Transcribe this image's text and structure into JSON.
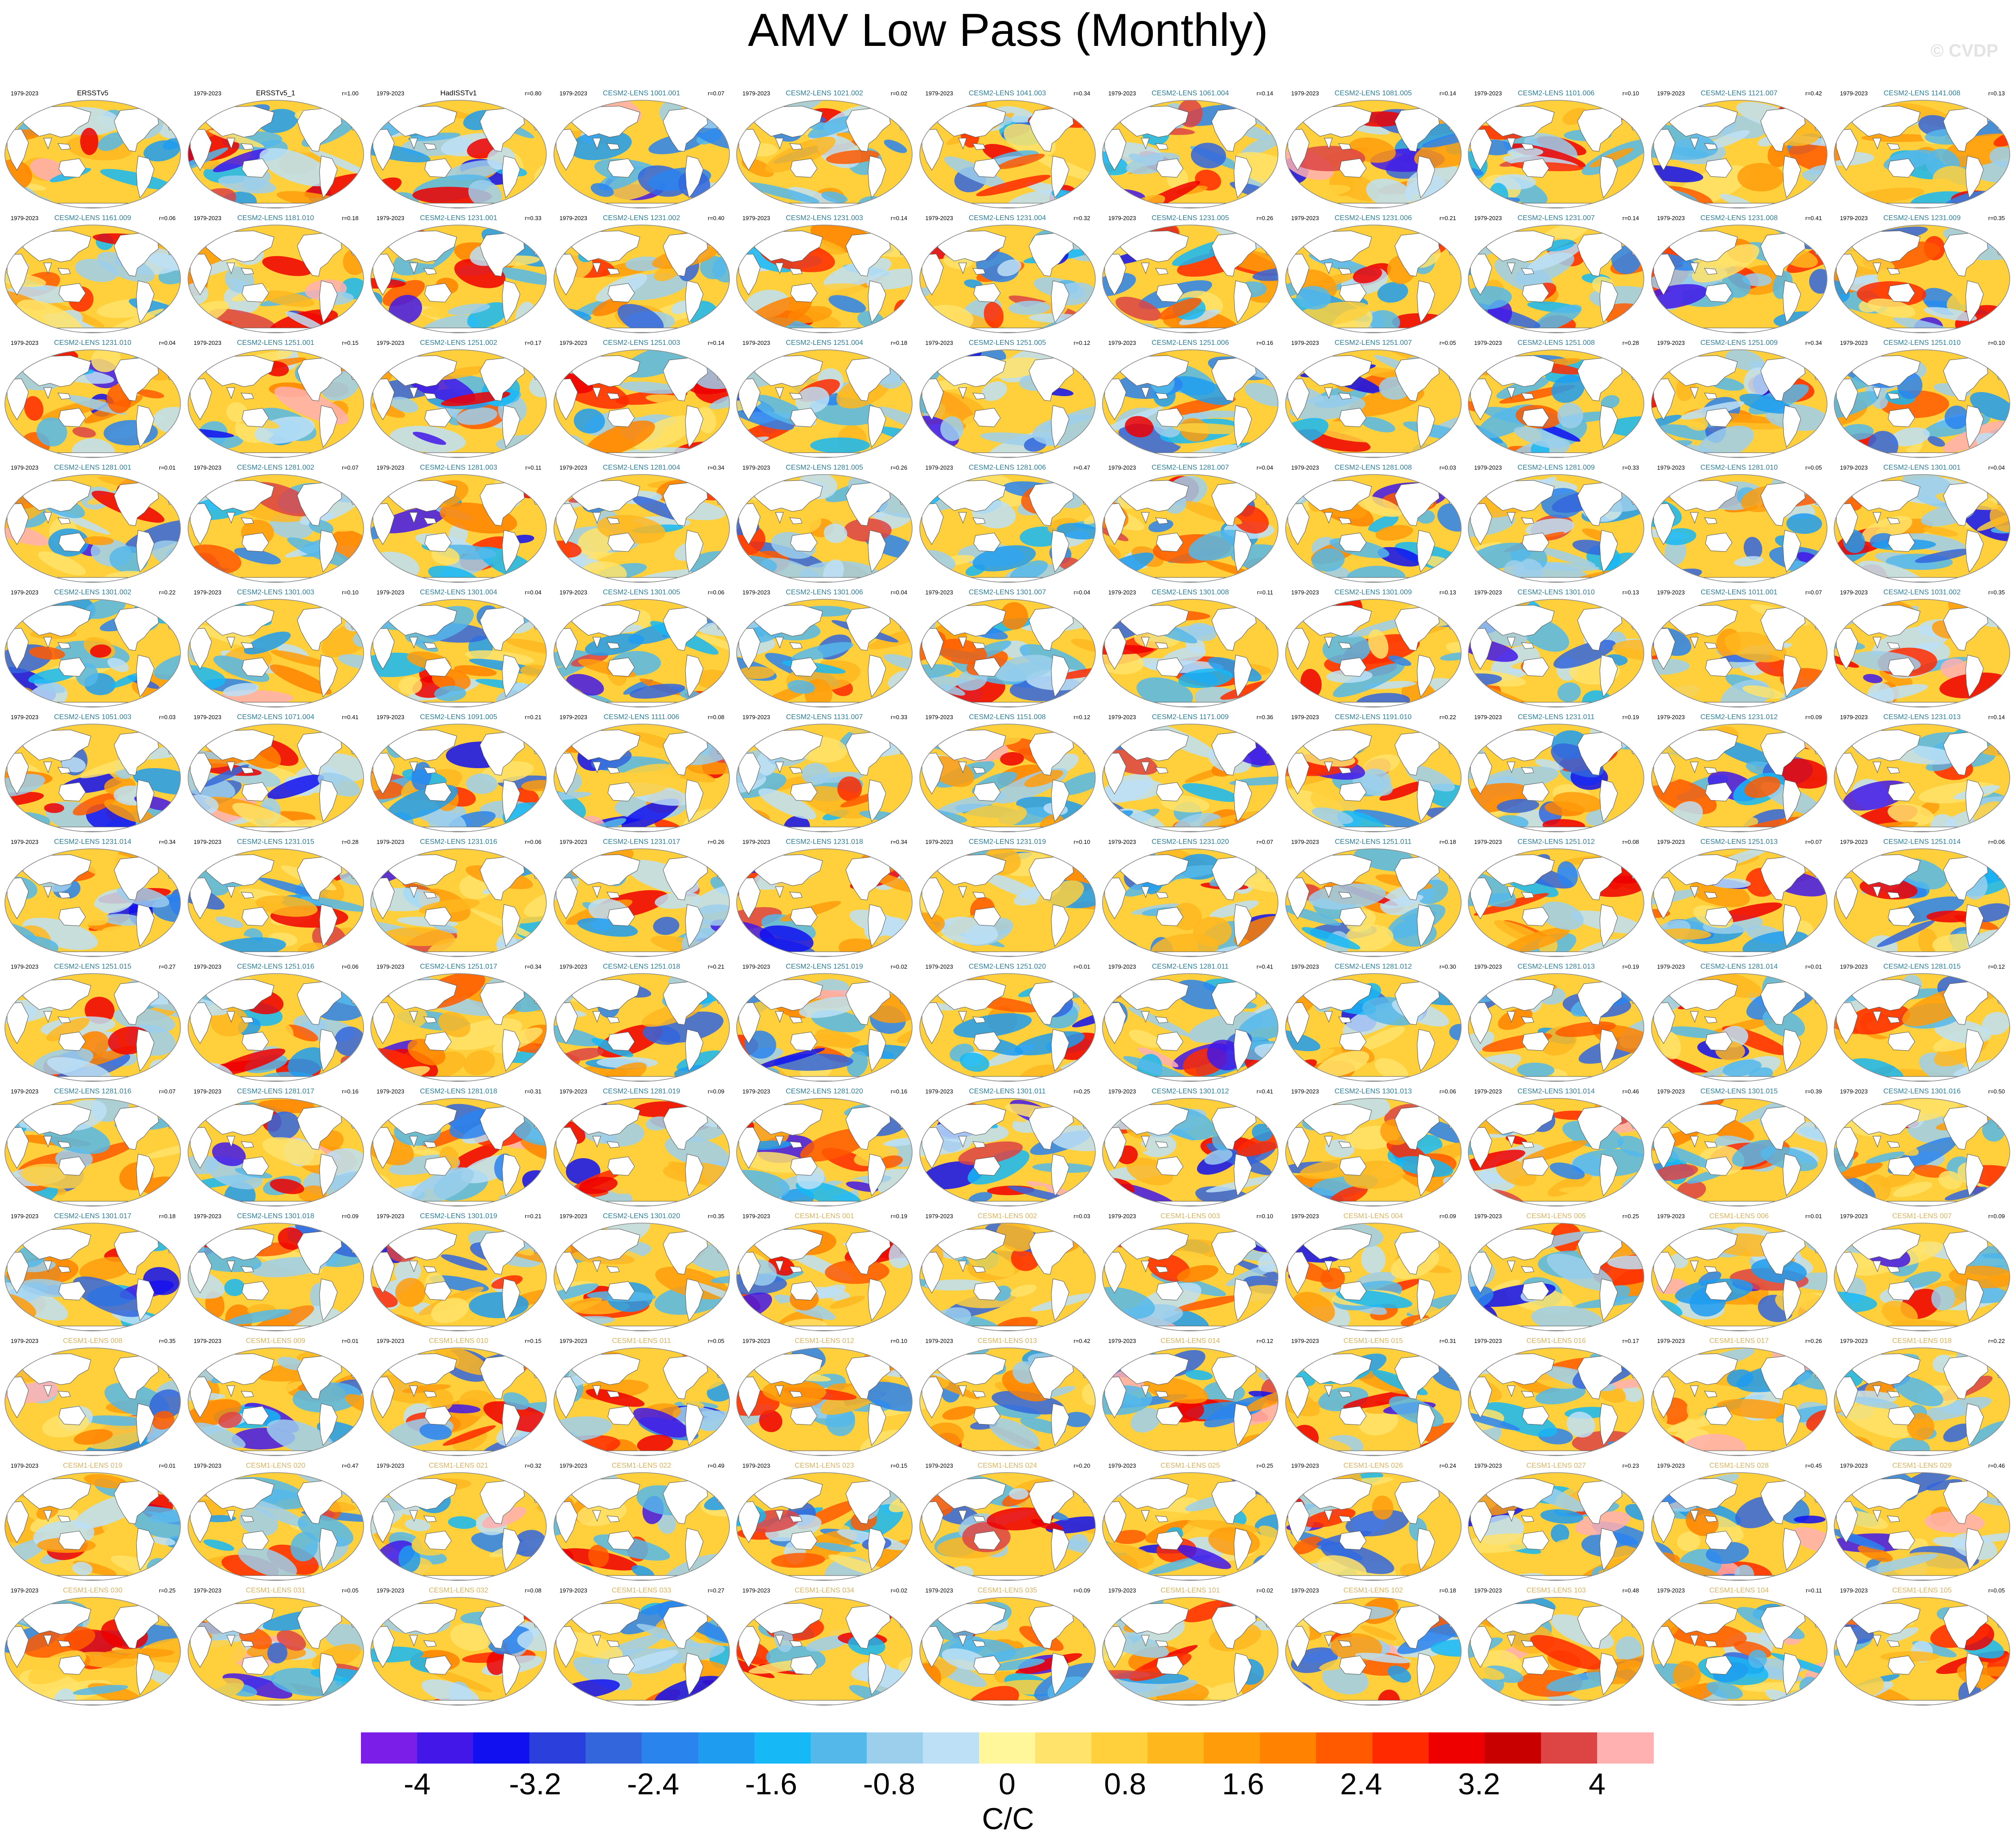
{
  "title": "AMV Low Pass (Monthly)",
  "watermark": "© CVDP",
  "period": "1979-2023",
  "colors": {
    "obs": "#000000",
    "cesm2": "#2e7d96",
    "cesm1": "#d6b25e",
    "land": "#ffffff",
    "coast": "#555555"
  },
  "panels": [
    {
      "name": "ERSSTv5",
      "r": "",
      "group": "obs"
    },
    {
      "name": "ERSSTv5_1",
      "r": "r=1.00",
      "group": "obs"
    },
    {
      "name": "HadISSTv1",
      "r": "r=0.80",
      "group": "obs"
    },
    {
      "name": "CESM2-LENS 1001.001",
      "r": "r=0.07",
      "group": "cesm2"
    },
    {
      "name": "CESM2-LENS 1021.002",
      "r": "r=0.02",
      "group": "cesm2"
    },
    {
      "name": "CESM2-LENS 1041.003",
      "r": "r=0.34",
      "group": "cesm2"
    },
    {
      "name": "CESM2-LENS 1061.004",
      "r": "r=0.14",
      "group": "cesm2"
    },
    {
      "name": "CESM2-LENS 1081.005",
      "r": "r=0.14",
      "group": "cesm2"
    },
    {
      "name": "CESM2-LENS 1101.006",
      "r": "r=0.10",
      "group": "cesm2"
    },
    {
      "name": "CESM2-LENS 1121.007",
      "r": "r=0.42",
      "group": "cesm2"
    },
    {
      "name": "CESM2-LENS 1141.008",
      "r": "r=0.13",
      "group": "cesm2"
    },
    {
      "name": "CESM2-LENS 1161.009",
      "r": "r=0.06",
      "group": "cesm2"
    },
    {
      "name": "CESM2-LENS 1181.010",
      "r": "r=0.18",
      "group": "cesm2"
    },
    {
      "name": "CESM2-LENS 1231.001",
      "r": "r=0.33",
      "group": "cesm2"
    },
    {
      "name": "CESM2-LENS 1231.002",
      "r": "r=0.40",
      "group": "cesm2"
    },
    {
      "name": "CESM2-LENS 1231.003",
      "r": "r=0.14",
      "group": "cesm2"
    },
    {
      "name": "CESM2-LENS 1231.004",
      "r": "r=0.32",
      "group": "cesm2"
    },
    {
      "name": "CESM2-LENS 1231.005",
      "r": "r=0.26",
      "group": "cesm2"
    },
    {
      "name": "CESM2-LENS 1231.006",
      "r": "r=0.21",
      "group": "cesm2"
    },
    {
      "name": "CESM2-LENS 1231.007",
      "r": "r=0.14",
      "group": "cesm2"
    },
    {
      "name": "CESM2-LENS 1231.008",
      "r": "r=0.41",
      "group": "cesm2"
    },
    {
      "name": "CESM2-LENS 1231.009",
      "r": "r=0.35",
      "group": "cesm2"
    },
    {
      "name": "CESM2-LENS 1231.010",
      "r": "r=0.04",
      "group": "cesm2"
    },
    {
      "name": "CESM2-LENS 1251.001",
      "r": "r=0.15",
      "group": "cesm2"
    },
    {
      "name": "CESM2-LENS 1251.002",
      "r": "r=0.17",
      "group": "cesm2"
    },
    {
      "name": "CESM2-LENS 1251.003",
      "r": "r=0.14",
      "group": "cesm2"
    },
    {
      "name": "CESM2-LENS 1251.004",
      "r": "r=0.18",
      "group": "cesm2"
    },
    {
      "name": "CESM2-LENS 1251.005",
      "r": "r=0.12",
      "group": "cesm2"
    },
    {
      "name": "CESM2-LENS 1251.006",
      "r": "r=0.16",
      "group": "cesm2"
    },
    {
      "name": "CESM2-LENS 1251.007",
      "r": "r=0.05",
      "group": "cesm2"
    },
    {
      "name": "CESM2-LENS 1251.008",
      "r": "r=0.28",
      "group": "cesm2"
    },
    {
      "name": "CESM2-LENS 1251.009",
      "r": "r=0.34",
      "group": "cesm2"
    },
    {
      "name": "CESM2-LENS 1251.010",
      "r": "r=0.10",
      "group": "cesm2"
    },
    {
      "name": "CESM2-LENS 1281.001",
      "r": "r=0.01",
      "group": "cesm2"
    },
    {
      "name": "CESM2-LENS 1281.002",
      "r": "r=0.07",
      "group": "cesm2"
    },
    {
      "name": "CESM2-LENS 1281.003",
      "r": "r=0.11",
      "group": "cesm2"
    },
    {
      "name": "CESM2-LENS 1281.004",
      "r": "r=0.34",
      "group": "cesm2"
    },
    {
      "name": "CESM2-LENS 1281.005",
      "r": "r=0.26",
      "group": "cesm2"
    },
    {
      "name": "CESM2-LENS 1281.006",
      "r": "r=0.47",
      "group": "cesm2"
    },
    {
      "name": "CESM2-LENS 1281.007",
      "r": "r=0.04",
      "group": "cesm2"
    },
    {
      "name": "CESM2-LENS 1281.008",
      "r": "r=0.03",
      "group": "cesm2"
    },
    {
      "name": "CESM2-LENS 1281.009",
      "r": "r=0.33",
      "group": "cesm2"
    },
    {
      "name": "CESM2-LENS 1281.010",
      "r": "r=0.05",
      "group": "cesm2"
    },
    {
      "name": "CESM2-LENS 1301.001",
      "r": "r=0.04",
      "group": "cesm2"
    },
    {
      "name": "CESM2-LENS 1301.002",
      "r": "r=0.22",
      "group": "cesm2"
    },
    {
      "name": "CESM2-LENS 1301.003",
      "r": "r=0.10",
      "group": "cesm2"
    },
    {
      "name": "CESM2-LENS 1301.004",
      "r": "r=0.04",
      "group": "cesm2"
    },
    {
      "name": "CESM2-LENS 1301.005",
      "r": "r=0.06",
      "group": "cesm2"
    },
    {
      "name": "CESM2-LENS 1301.006",
      "r": "r=0.04",
      "group": "cesm2"
    },
    {
      "name": "CESM2-LENS 1301.007",
      "r": "r=0.04",
      "group": "cesm2"
    },
    {
      "name": "CESM2-LENS 1301.008",
      "r": "r=0.11",
      "group": "cesm2"
    },
    {
      "name": "CESM2-LENS 1301.009",
      "r": "r=0.13",
      "group": "cesm2"
    },
    {
      "name": "CESM2-LENS 1301.010",
      "r": "r=0.13",
      "group": "cesm2"
    },
    {
      "name": "CESM2-LENS 1011.001",
      "r": "r=0.07",
      "group": "cesm2"
    },
    {
      "name": "CESM2-LENS 1031.002",
      "r": "r=0.35",
      "group": "cesm2"
    },
    {
      "name": "CESM2-LENS 1051.003",
      "r": "r=0.03",
      "group": "cesm2"
    },
    {
      "name": "CESM2-LENS 1071.004",
      "r": "r=0.41",
      "group": "cesm2"
    },
    {
      "name": "CESM2-LENS 1091.005",
      "r": "r=0.21",
      "group": "cesm2"
    },
    {
      "name": "CESM2-LENS 1111.006",
      "r": "r=0.08",
      "group": "cesm2"
    },
    {
      "name": "CESM2-LENS 1131.007",
      "r": "r=0.33",
      "group": "cesm2"
    },
    {
      "name": "CESM2-LENS 1151.008",
      "r": "r=0.12",
      "group": "cesm2"
    },
    {
      "name": "CESM2-LENS 1171.009",
      "r": "r=0.36",
      "group": "cesm2"
    },
    {
      "name": "CESM2-LENS 1191.010",
      "r": "r=0.22",
      "group": "cesm2"
    },
    {
      "name": "CESM2-LENS 1231.011",
      "r": "r=0.19",
      "group": "cesm2"
    },
    {
      "name": "CESM2-LENS 1231.012",
      "r": "r=0.09",
      "group": "cesm2"
    },
    {
      "name": "CESM2-LENS 1231.013",
      "r": "r=0.14",
      "group": "cesm2"
    },
    {
      "name": "CESM2-LENS 1231.014",
      "r": "r=0.34",
      "group": "cesm2"
    },
    {
      "name": "CESM2-LENS 1231.015",
      "r": "r=0.28",
      "group": "cesm2"
    },
    {
      "name": "CESM2-LENS 1231.016",
      "r": "r=0.06",
      "group": "cesm2"
    },
    {
      "name": "CESM2-LENS 1231.017",
      "r": "r=0.26",
      "group": "cesm2"
    },
    {
      "name": "CESM2-LENS 1231.018",
      "r": "r=0.34",
      "group": "cesm2"
    },
    {
      "name": "CESM2-LENS 1231.019",
      "r": "r=0.10",
      "group": "cesm2"
    },
    {
      "name": "CESM2-LENS 1231.020",
      "r": "r=0.07",
      "group": "cesm2"
    },
    {
      "name": "CESM2-LENS 1251.011",
      "r": "r=0.18",
      "group": "cesm2"
    },
    {
      "name": "CESM2-LENS 1251.012",
      "r": "r=0.08",
      "group": "cesm2"
    },
    {
      "name": "CESM2-LENS 1251.013",
      "r": "r=0.07",
      "group": "cesm2"
    },
    {
      "name": "CESM2-LENS 1251.014",
      "r": "r=0.06",
      "group": "cesm2"
    },
    {
      "name": "CESM2-LENS 1251.015",
      "r": "r=0.27",
      "group": "cesm2"
    },
    {
      "name": "CESM2-LENS 1251.016",
      "r": "r=0.06",
      "group": "cesm2"
    },
    {
      "name": "CESM2-LENS 1251.017",
      "r": "r=0.34",
      "group": "cesm2"
    },
    {
      "name": "CESM2-LENS 1251.018",
      "r": "r=0.21",
      "group": "cesm2"
    },
    {
      "name": "CESM2-LENS 1251.019",
      "r": "r=0.02",
      "group": "cesm2"
    },
    {
      "name": "CESM2-LENS 1251.020",
      "r": "r=0.01",
      "group": "cesm2"
    },
    {
      "name": "CESM2-LENS 1281.011",
      "r": "r=0.41",
      "group": "cesm2"
    },
    {
      "name": "CESM2-LENS 1281.012",
      "r": "r=0.30",
      "group": "cesm2"
    },
    {
      "name": "CESM2-LENS 1281.013",
      "r": "r=0.19",
      "group": "cesm2"
    },
    {
      "name": "CESM2-LENS 1281.014",
      "r": "r=0.01",
      "group": "cesm2"
    },
    {
      "name": "CESM2-LENS 1281.015",
      "r": "r=0.12",
      "group": "cesm2"
    },
    {
      "name": "CESM2-LENS 1281.016",
      "r": "r=0.07",
      "group": "cesm2"
    },
    {
      "name": "CESM2-LENS 1281.017",
      "r": "r=0.16",
      "group": "cesm2"
    },
    {
      "name": "CESM2-LENS 1281.018",
      "r": "r=0.31",
      "group": "cesm2"
    },
    {
      "name": "CESM2-LENS 1281.019",
      "r": "r=0.09",
      "group": "cesm2"
    },
    {
      "name": "CESM2-LENS 1281.020",
      "r": "r=0.16",
      "group": "cesm2"
    },
    {
      "name": "CESM2-LENS 1301.011",
      "r": "r=0.25",
      "group": "cesm2"
    },
    {
      "name": "CESM2-LENS 1301.012",
      "r": "r=0.41",
      "group": "cesm2"
    },
    {
      "name": "CESM2-LENS 1301.013",
      "r": "r=0.06",
      "group": "cesm2"
    },
    {
      "name": "CESM2-LENS 1301.014",
      "r": "r=0.46",
      "group": "cesm2"
    },
    {
      "name": "CESM2-LENS 1301.015",
      "r": "r=0.39",
      "group": "cesm2"
    },
    {
      "name": "CESM2-LENS 1301.016",
      "r": "r=0.50",
      "group": "cesm2"
    },
    {
      "name": "CESM2-LENS 1301.017",
      "r": "r=0.18",
      "group": "cesm2"
    },
    {
      "name": "CESM2-LENS 1301.018",
      "r": "r=0.09",
      "group": "cesm2"
    },
    {
      "name": "CESM2-LENS 1301.019",
      "r": "r=0.21",
      "group": "cesm2"
    },
    {
      "name": "CESM2-LENS 1301.020",
      "r": "r=0.35",
      "group": "cesm2"
    },
    {
      "name": "CESM1-LENS 001",
      "r": "r=0.19",
      "group": "cesm1"
    },
    {
      "name": "CESM1-LENS 002",
      "r": "r=0.03",
      "group": "cesm1"
    },
    {
      "name": "CESM1-LENS 003",
      "r": "r=0.10",
      "group": "cesm1"
    },
    {
      "name": "CESM1-LENS 004",
      "r": "r=0.09",
      "group": "cesm1"
    },
    {
      "name": "CESM1-LENS 005",
      "r": "r=0.25",
      "group": "cesm1"
    },
    {
      "name": "CESM1-LENS 006",
      "r": "r=0.01",
      "group": "cesm1"
    },
    {
      "name": "CESM1-LENS 007",
      "r": "r=0.09",
      "group": "cesm1"
    },
    {
      "name": "CESM1-LENS 008",
      "r": "r=0.35",
      "group": "cesm1"
    },
    {
      "name": "CESM1-LENS 009",
      "r": "r=0.01",
      "group": "cesm1"
    },
    {
      "name": "CESM1-LENS 010",
      "r": "r=0.15",
      "group": "cesm1"
    },
    {
      "name": "CESM1-LENS 011",
      "r": "r=0.05",
      "group": "cesm1"
    },
    {
      "name": "CESM1-LENS 012",
      "r": "r=0.10",
      "group": "cesm1"
    },
    {
      "name": "CESM1-LENS 013",
      "r": "r=0.42",
      "group": "cesm1"
    },
    {
      "name": "CESM1-LENS 014",
      "r": "r=0.12",
      "group": "cesm1"
    },
    {
      "name": "CESM1-LENS 015",
      "r": "r=0.31",
      "group": "cesm1"
    },
    {
      "name": "CESM1-LENS 016",
      "r": "r=0.17",
      "group": "cesm1"
    },
    {
      "name": "CESM1-LENS 017",
      "r": "r=0.26",
      "group": "cesm1"
    },
    {
      "name": "CESM1-LENS 018",
      "r": "r=0.22",
      "group": "cesm1"
    },
    {
      "name": "CESM1-LENS 019",
      "r": "r=0.01",
      "group": "cesm1"
    },
    {
      "name": "CESM1-LENS 020",
      "r": "r=0.47",
      "group": "cesm1"
    },
    {
      "name": "CESM1-LENS 021",
      "r": "r=0.32",
      "group": "cesm1"
    },
    {
      "name": "CESM1-LENS 022",
      "r": "r=0.49",
      "group": "cesm1"
    },
    {
      "name": "CESM1-LENS 023",
      "r": "r=0.15",
      "group": "cesm1"
    },
    {
      "name": "CESM1-LENS 024",
      "r": "r=0.20",
      "group": "cesm1"
    },
    {
      "name": "CESM1-LENS 025",
      "r": "r=0.25",
      "group": "cesm1"
    },
    {
      "name": "CESM1-LENS 026",
      "r": "r=0.24",
      "group": "cesm1"
    },
    {
      "name": "CESM1-LENS 027",
      "r": "r=0.23",
      "group": "cesm1"
    },
    {
      "name": "CESM1-LENS 028",
      "r": "r=0.45",
      "group": "cesm1"
    },
    {
      "name": "CESM1-LENS 029",
      "r": "r=0.46",
      "group": "cesm1"
    },
    {
      "name": "CESM1-LENS 030",
      "r": "r=0.25",
      "group": "cesm1"
    },
    {
      "name": "CESM1-LENS 031",
      "r": "r=0.05",
      "group": "cesm1"
    },
    {
      "name": "CESM1-LENS 032",
      "r": "r=0.08",
      "group": "cesm1"
    },
    {
      "name": "CESM1-LENS 033",
      "r": "r=0.27",
      "group": "cesm1"
    },
    {
      "name": "CESM1-LENS 034",
      "r": "r=0.02",
      "group": "cesm1"
    },
    {
      "name": "CESM1-LENS 035",
      "r": "r=0.09",
      "group": "cesm1"
    },
    {
      "name": "CESM1-LENS 101",
      "r": "r=0.02",
      "group": "cesm1"
    },
    {
      "name": "CESM1-LENS 102",
      "r": "r=0.18",
      "group": "cesm1"
    },
    {
      "name": "CESM1-LENS 103",
      "r": "r=0.48",
      "group": "cesm1"
    },
    {
      "name": "CESM1-LENS 104",
      "r": "r=0.11",
      "group": "cesm1"
    },
    {
      "name": "CESM1-LENS 105",
      "r": "r=0.05",
      "group": "cesm1"
    }
  ],
  "colorbar": {
    "label": "C/C",
    "colors": [
      "#7b1fe8",
      "#4217e8",
      "#1010f0",
      "#2b3fdc",
      "#3366dd",
      "#2a84ee",
      "#1e9cf0",
      "#16b8f5",
      "#55b8ea",
      "#9ccfec",
      "#bde0f6",
      "#fff79a",
      "#ffe36a",
      "#ffd03c",
      "#ffb71e",
      "#ff9c0a",
      "#ff8200",
      "#ff5a00",
      "#ff2a00",
      "#ee0000",
      "#c80000",
      "#dd4444",
      "#ffb0b0"
    ],
    "ticks": [
      {
        "value": -4,
        "label": "-4"
      },
      {
        "value": -3.2,
        "label": "-3.2"
      },
      {
        "value": -2.4,
        "label": "-2.4"
      },
      {
        "value": -1.6,
        "label": "-1.6"
      },
      {
        "value": -0.8,
        "label": "-0.8"
      },
      {
        "value": 0,
        "label": "0"
      },
      {
        "value": 0.8,
        "label": "0.8"
      },
      {
        "value": 1.6,
        "label": "1.6"
      },
      {
        "value": 2.4,
        "label": "2.4"
      },
      {
        "value": 3.2,
        "label": "3.2"
      },
      {
        "value": 4,
        "label": "4"
      }
    ]
  }
}
